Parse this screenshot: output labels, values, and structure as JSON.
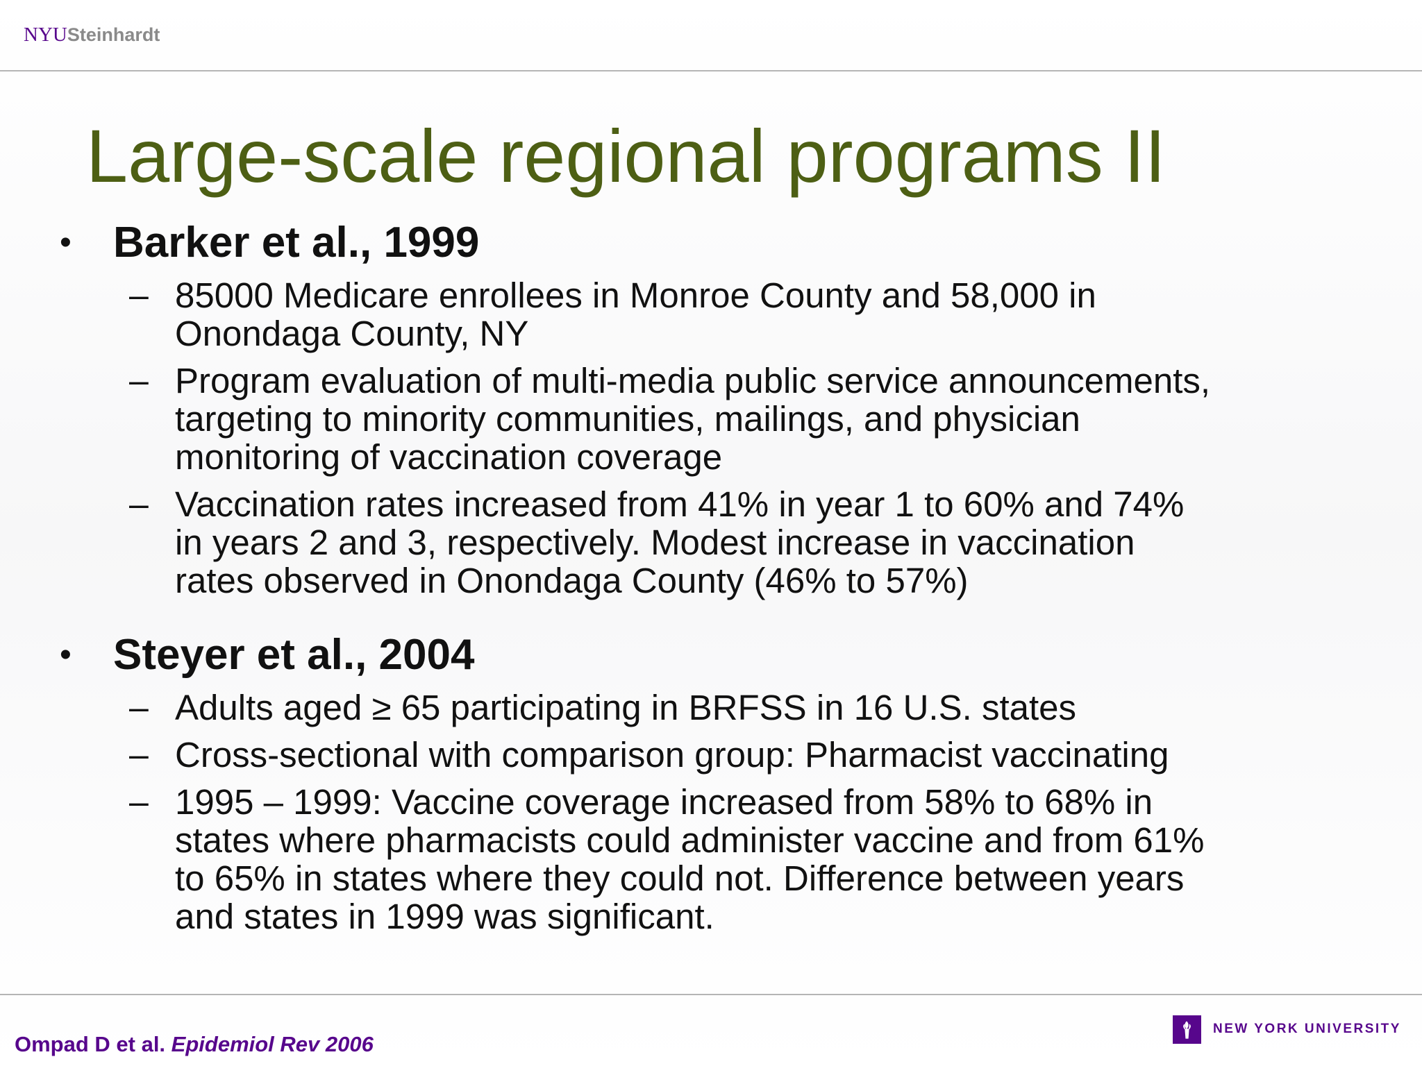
{
  "header": {
    "logo": {
      "primary": "NYU",
      "secondary": "Steinhardt"
    }
  },
  "title": "Large-scale regional programs II",
  "sections": [
    {
      "heading": "Barker et al., 1999",
      "items": [
        {
          "lines": [
            "85000 Medicare enrollees in Monroe County and 58,000 in",
            "Onondaga County, NY"
          ]
        },
        {
          "lines": [
            "Program evaluation of multi-media public service announcements,",
            "targeting to minority communities, mailings, and physician",
            "monitoring of vaccination coverage"
          ]
        },
        {
          "lines": [
            "Vaccination rates increased from 41% in year 1 to 60% and 74%",
            "in years 2 and 3, respectively.  Modest increase in vaccination",
            "rates observed in Onondaga County (46% to 57%)"
          ]
        }
      ]
    },
    {
      "heading": "Steyer et al., 2004",
      "items": [
        {
          "lines": [
            "Adults aged ≥ 65 participating in BRFSS in 16 U.S. states"
          ]
        },
        {
          "lines": [
            "Cross-sectional with comparison group: Pharmacist vaccinating"
          ]
        },
        {
          "lines": [
            "1995 – 1999: Vaccine coverage increased from 58% to 68% in",
            "states where pharmacists could administer vaccine and from 61%",
            "to 65% in states where they could not.  Difference between years",
            "and states in 1999 was significant."
          ]
        }
      ]
    }
  ],
  "footer": {
    "citation": {
      "authors": "Ompad D et al.",
      "journal": "Epidemiol Rev 2006"
    },
    "university": "NEW YORK UNIVERSITY"
  }
}
